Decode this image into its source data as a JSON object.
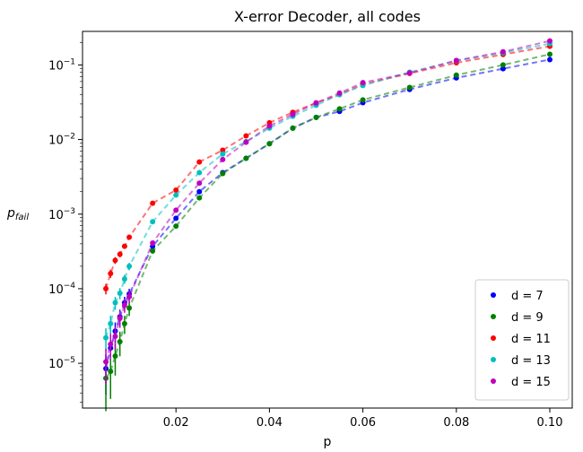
{
  "chart_data": {
    "type": "scatter",
    "title": "X-error Decoder, all codes",
    "xlabel": "p",
    "ylabel_main": "p",
    "ylabel_sub": "fail",
    "xlim": [
      0.0,
      0.1048
    ],
    "ylim_log10": [
      -5.6,
      -0.55
    ],
    "y_scale": "log",
    "x_ticks": [
      {
        "value": 0.02,
        "label": "0.02"
      },
      {
        "value": 0.04,
        "label": "0.04"
      },
      {
        "value": 0.06,
        "label": "0.06"
      },
      {
        "value": 0.08,
        "label": "0.08"
      },
      {
        "value": 0.1,
        "label": "0.10"
      }
    ],
    "y_ticks": [
      {
        "exp": -5,
        "label_base": "10",
        "label_exp": "−5"
      },
      {
        "exp": -4,
        "label_base": "10",
        "label_exp": "−4"
      },
      {
        "exp": -3,
        "label_base": "10",
        "label_exp": "−3"
      },
      {
        "exp": -2,
        "label_base": "10",
        "label_exp": "−2"
      },
      {
        "exp": -1,
        "label_base": "10",
        "label_exp": "−1"
      }
    ],
    "legend_placement": "bottom-right",
    "series": [
      {
        "name": "d = 7",
        "color": "#0000ff",
        "x": [
          0.005,
          0.006,
          0.007,
          0.008,
          0.009,
          0.01,
          0.015,
          0.02,
          0.025,
          0.03,
          0.035,
          0.04,
          0.045,
          0.05,
          0.055,
          0.06,
          0.07,
          0.08,
          0.09,
          0.1
        ],
        "y": [
          8.5e-06,
          1.6e-05,
          2.7e-05,
          4.2e-05,
          6.5e-05,
          8.5e-05,
          0.00037,
          0.00088,
          0.002,
          0.0036,
          0.0056,
          0.0088,
          0.0142,
          0.0198,
          0.0238,
          0.0312,
          0.047,
          0.067,
          0.089,
          0.118
        ]
      },
      {
        "name": "d = 9",
        "color": "#008000",
        "x": [
          0.005,
          0.006,
          0.007,
          0.008,
          0.009,
          0.01,
          0.015,
          0.02,
          0.025,
          0.03,
          0.035,
          0.04,
          0.045,
          0.05,
          0.055,
          0.06,
          0.07,
          0.08,
          0.09,
          0.1
        ],
        "y": [
          6.3e-06,
          7.8e-06,
          1.25e-05,
          1.95e-05,
          3.4e-05,
          5.5e-05,
          0.00032,
          0.00069,
          0.00165,
          0.0035,
          0.0056,
          0.0088,
          0.0142,
          0.0198,
          0.0258,
          0.034,
          0.05,
          0.073,
          0.1,
          0.139
        ]
      },
      {
        "name": "d = 11",
        "color": "#ff0000",
        "x": [
          0.005,
          0.006,
          0.007,
          0.008,
          0.009,
          0.01,
          0.015,
          0.02,
          0.025,
          0.03,
          0.035,
          0.04,
          0.045,
          0.05,
          0.055,
          0.06,
          0.07,
          0.08,
          0.09,
          0.1
        ],
        "y": [
          0.0001,
          0.00016,
          0.00024,
          0.00029,
          0.00037,
          0.00049,
          0.0014,
          0.0021,
          0.005,
          0.0072,
          0.0112,
          0.0168,
          0.0232,
          0.031,
          0.04,
          0.055,
          0.077,
          0.107,
          0.138,
          0.178
        ]
      },
      {
        "name": "d = 13",
        "color": "#00bfbf",
        "x": [
          0.005,
          0.006,
          0.007,
          0.008,
          0.009,
          0.01,
          0.015,
          0.02,
          0.025,
          0.03,
          0.035,
          0.04,
          0.045,
          0.05,
          0.055,
          0.06,
          0.07,
          0.08,
          0.09,
          0.1
        ],
        "y": [
          2.2e-05,
          3.4e-05,
          6.5e-05,
          8.7e-05,
          0.000135,
          0.0002,
          0.00079,
          0.0018,
          0.0036,
          0.0064,
          0.0094,
          0.0142,
          0.0205,
          0.0288,
          0.04,
          0.053,
          0.08,
          0.114,
          0.145,
          0.193
        ]
      },
      {
        "name": "d = 15",
        "color": "#bf00bf",
        "x": [
          0.005,
          0.006,
          0.007,
          0.008,
          0.009,
          0.01,
          0.015,
          0.02,
          0.025,
          0.03,
          0.035,
          0.04,
          0.045,
          0.05,
          0.055,
          0.06,
          0.07,
          0.08,
          0.09,
          0.1
        ],
        "y": [
          1.05e-05,
          1.8e-05,
          2.3e-05,
          4e-05,
          6e-05,
          7.8e-05,
          0.00041,
          0.00113,
          0.0026,
          0.0054,
          0.0092,
          0.0152,
          0.0218,
          0.031,
          0.042,
          0.058,
          0.078,
          0.115,
          0.15,
          0.21
        ]
      }
    ]
  }
}
